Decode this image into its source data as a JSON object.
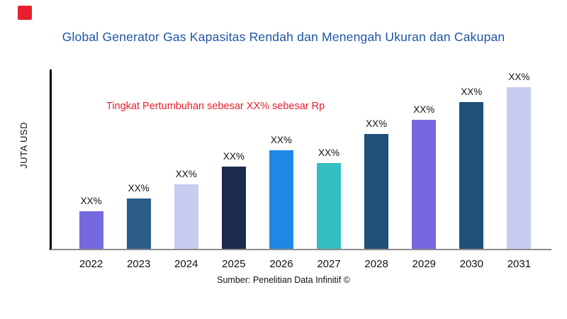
{
  "page": {
    "background": "#ffffff",
    "logo_color": "#e8202e",
    "title_color": "#1f55a4",
    "accent_red": "#e8202e"
  },
  "chart_data": {
    "type": "bar",
    "title": "Global Generator Gas Kapasitas Rendah dan Menengah Ukuran dan Cakupan",
    "ylabel": "JUTA USD",
    "xlabel": "",
    "annotation": "Tingkat Pertumbuhan sebesar XX% sebesar Rp",
    "annotation_color": "#e8202e",
    "categories": [
      "2022",
      "2023",
      "2024",
      "2025",
      "2026",
      "2027",
      "2028",
      "2029",
      "2030",
      "2031"
    ],
    "values": [
      21,
      28,
      36,
      46,
      55,
      48,
      64,
      72,
      82,
      90
    ],
    "ylim": [
      0,
      100
    ],
    "bar_labels": [
      "XX%",
      "XX%",
      "XX%",
      "XX%",
      "XX%",
      "XX%",
      "XX%",
      "XX%",
      "XX%",
      "XX%"
    ],
    "bar_colors": [
      "#7668de",
      "#2a5c88",
      "#c7ccf0",
      "#1b2a4e",
      "#1e88e5",
      "#35bdc4",
      "#1f5078",
      "#7668de",
      "#1f5078",
      "#c7ccf0"
    ],
    "grid": false,
    "legend": false,
    "source": "Sumber: Penelitian Data Infinitif ©"
  }
}
